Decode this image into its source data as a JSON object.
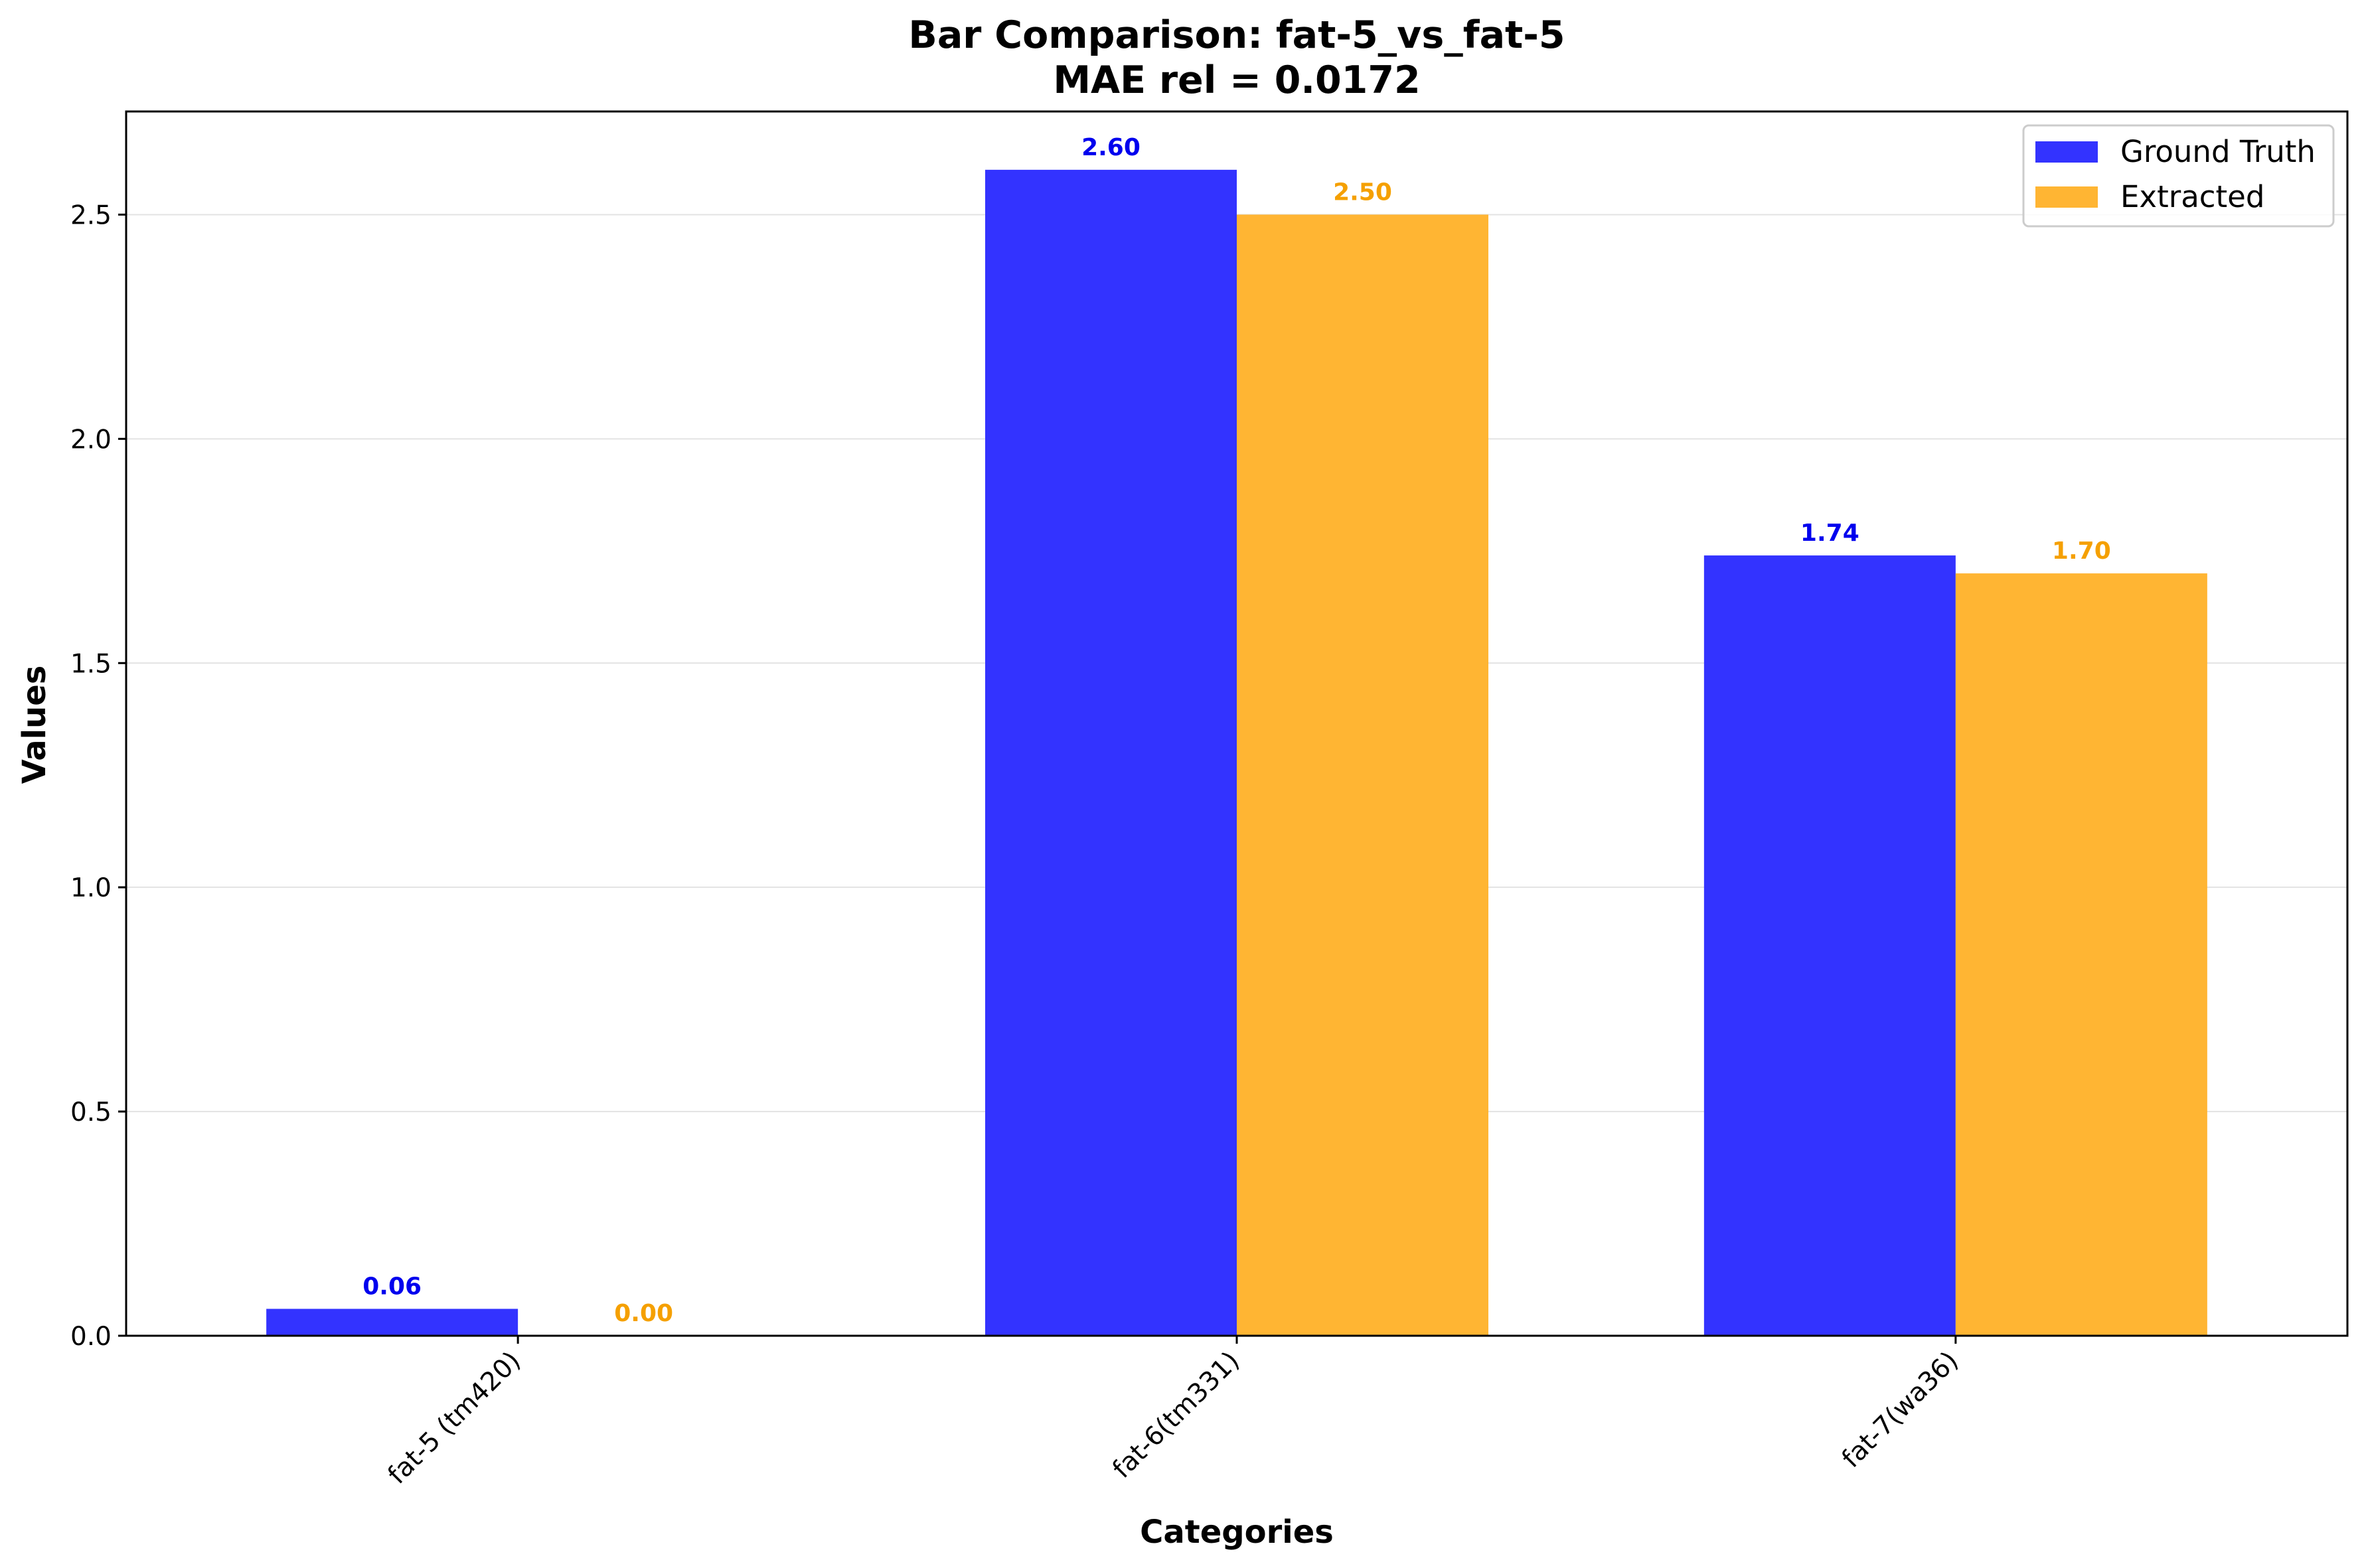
{
  "chart_data": {
    "type": "bar",
    "title": "Bar Comparison: fat-5_vs_fat-5",
    "subtitle": "MAE rel = 0.0172",
    "xlabel": "Categories",
    "ylabel": "Values",
    "categories": [
      "fat-5 (tm420)",
      "fat-6(tm331)",
      "fat-7(wa36)"
    ],
    "series": [
      {
        "name": "Ground Truth",
        "values": [
          0.06,
          2.6,
          1.74
        ],
        "labels": [
          "0.06",
          "2.60",
          "1.74"
        ],
        "color": "#3333ff",
        "label_color": "#0000ee"
      },
      {
        "name": "Extracted",
        "values": [
          0.0,
          2.5,
          1.7
        ],
        "labels": [
          "0.00",
          "2.50",
          "1.70"
        ],
        "color": "#ffb533",
        "label_color": "#f5a000"
      }
    ],
    "ylim": [
      0,
      2.73
    ],
    "yticks": [
      0.0,
      0.5,
      1.0,
      1.5,
      2.0,
      2.5
    ],
    "ytick_labels": [
      "0.0",
      "0.5",
      "1.0",
      "1.5",
      "2.0",
      "2.5"
    ],
    "grid": true,
    "legend_position": "top-right"
  }
}
